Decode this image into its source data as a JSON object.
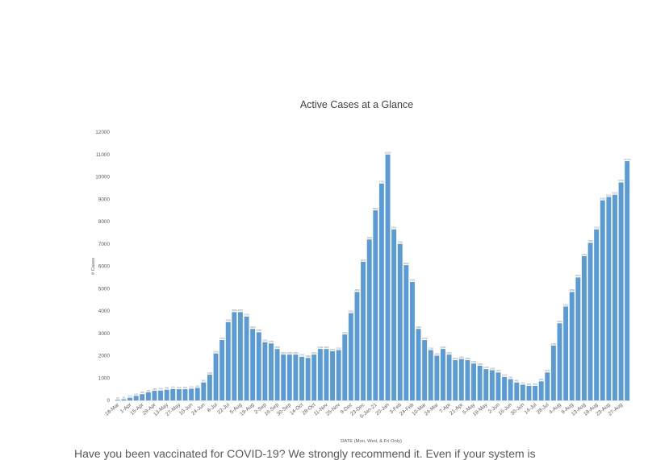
{
  "chart_data": {
    "type": "bar",
    "title": "Active Cases at a Glance",
    "xlabel": "DATE  (Mon, Wed, & Fri Only)",
    "ylabel": "# Cases",
    "ylim": [
      0,
      12000
    ],
    "yticks": [
      0,
      1000,
      2000,
      3000,
      4000,
      5000,
      6000,
      7000,
      8000,
      9000,
      10000,
      11000,
      12000
    ],
    "grid": false,
    "legend": "none",
    "bar_color": "#5b9bd5",
    "x_tick_labels": [
      "18-Mar",
      "1-Apr",
      "15-Apr",
      "29-Apr",
      "13-May",
      "27-May",
      "10-Jun",
      "24-Jun",
      "8-Jul",
      "22-Jul",
      "5-Aug",
      "19-Aug",
      "2-Sep",
      "16-Sep",
      "30-Sep",
      "14-Oct",
      "28-Oct",
      "11-Nov",
      "25-Nov",
      "9-Dec",
      "23-Dec",
      "6-Jan-21",
      "20-Jan",
      "3-Feb",
      "24-Feb",
      "10-Mar",
      "24-Mar",
      "7-Apr",
      "21-Apr",
      "5-May",
      "19-May",
      "2-Jun",
      "16-Jun",
      "30-Jun",
      "14-Jul",
      "28-Jul",
      "4-Aug",
      "9-Aug",
      "13-Aug",
      "18-Aug",
      "23-Aug",
      "27-Aug"
    ],
    "tick_every": 2,
    "values": [
      30,
      50,
      120,
      200,
      280,
      360,
      430,
      440,
      480,
      510,
      500,
      500,
      520,
      560,
      800,
      1150,
      2100,
      2700,
      3500,
      3950,
      3950,
      3750,
      3200,
      3050,
      2600,
      2550,
      2300,
      2050,
      2050,
      2050,
      1950,
      1900,
      2050,
      2300,
      2300,
      2200,
      2250,
      2950,
      3900,
      4850,
      6200,
      7200,
      8500,
      9700,
      11000,
      7650,
      7000,
      6050,
      5300,
      3200,
      2700,
      2250,
      2000,
      2300,
      2050,
      1800,
      1850,
      1800,
      1650,
      1550,
      1400,
      1350,
      1250,
      1050,
      950,
      800,
      700,
      650,
      650,
      850,
      1250,
      2450,
      3450,
      4200,
      4850,
      5500,
      6450,
      7050,
      7650,
      8950,
      9100,
      9200,
      9750,
      10700
    ]
  },
  "caption": {
    "text": "Have you been vaccinated for COVID-19? We strongly recommend it. Even if your system is"
  }
}
